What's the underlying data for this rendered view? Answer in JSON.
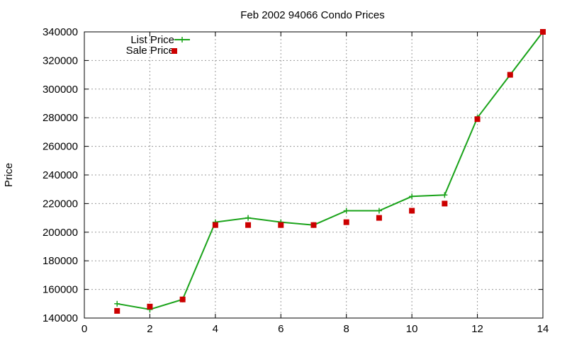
{
  "chart_data": {
    "type": "line",
    "title": "Feb 2002 94066 Condo Prices",
    "xlabel": "",
    "ylabel": "Price",
    "xlim": [
      0,
      14
    ],
    "ylim": [
      140000,
      340000
    ],
    "xticks": [
      0,
      2,
      4,
      6,
      8,
      10,
      12,
      14
    ],
    "yticks": [
      140000,
      160000,
      180000,
      200000,
      220000,
      240000,
      260000,
      280000,
      300000,
      320000,
      340000
    ],
    "grid": true,
    "legend_position": "top-left",
    "series": [
      {
        "name": "List Price",
        "style": "line+cross",
        "color": "#1aa31a",
        "points": [
          [
            1,
            150000
          ],
          [
            2,
            146000
          ],
          [
            3,
            153000
          ],
          [
            4,
            207000
          ],
          [
            5,
            210000
          ],
          [
            6,
            207000
          ],
          [
            7,
            205000
          ],
          [
            8,
            215000
          ],
          [
            9,
            215000
          ],
          [
            10,
            225000
          ],
          [
            11,
            226000
          ],
          [
            12,
            280000
          ],
          [
            13,
            310000
          ],
          [
            14,
            340000
          ]
        ]
      },
      {
        "name": "Sale Price",
        "style": "square",
        "color": "#cc0000",
        "points": [
          [
            1,
            145000
          ],
          [
            2,
            148000
          ],
          [
            3,
            153000
          ],
          [
            4,
            205000
          ],
          [
            5,
            205000
          ],
          [
            6,
            205000
          ],
          [
            7,
            205000
          ],
          [
            8,
            207000
          ],
          [
            9,
            210000
          ],
          [
            10,
            215000
          ],
          [
            11,
            220000
          ],
          [
            12,
            279000
          ],
          [
            13,
            310000
          ],
          [
            14,
            340000
          ]
        ]
      }
    ]
  }
}
